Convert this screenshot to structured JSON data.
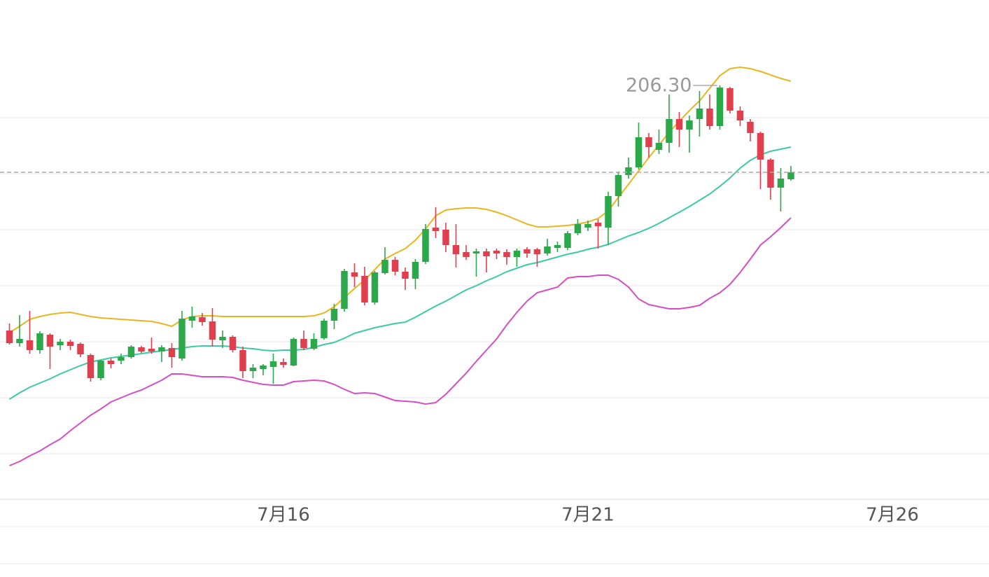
{
  "chart_data": {
    "type": "candlestick",
    "open": [
      188.8,
      187.9,
      188.1,
      187.4,
      188.5,
      187.75,
      188.0,
      187.85,
      187.05,
      185.4,
      186.65,
      186.65,
      186.9,
      187.6,
      187.5,
      187.3,
      187.55,
      186.8,
      189.5,
      189.75,
      189.45,
      188.1,
      188.35,
      187.4,
      185.9,
      186.05,
      186.2,
      186.55,
      186.3,
      188.2,
      187.5,
      188.25,
      189.5,
      190.35,
      192.95,
      192.7,
      190.8,
      192.9,
      193.85,
      193.0,
      192.5,
      193.7,
      196.15,
      196.0,
      194.9,
      194.4,
      194.3,
      194.45,
      194.5,
      194.4,
      194.05,
      194.6,
      194.6,
      194.3,
      194.7,
      194.7,
      195.75,
      196.15,
      196.5,
      196.15,
      198.4,
      199.9,
      200.45,
      202.6,
      201.7,
      202.2,
      203.9,
      203.15,
      203.9,
      204.65,
      203.4,
      206.1,
      204.5,
      203.7,
      202.9,
      201.0,
      199.0,
      199.6
    ],
    "close": [
      187.9,
      188.2,
      187.4,
      188.6,
      187.65,
      188.0,
      187.7,
      187.1,
      185.4,
      186.65,
      186.4,
      186.9,
      187.65,
      187.3,
      187.3,
      187.6,
      186.9,
      189.65,
      189.8,
      189.4,
      188.15,
      188.35,
      187.4,
      185.9,
      186.15,
      186.3,
      186.6,
      186.35,
      188.2,
      187.55,
      188.2,
      189.5,
      190.35,
      193.05,
      192.65,
      190.8,
      192.95,
      193.85,
      193.0,
      192.5,
      193.7,
      196.05,
      195.9,
      194.9,
      194.25,
      194.05,
      194.45,
      194.1,
      194.3,
      194.05,
      194.5,
      194.3,
      194.25,
      194.8,
      194.9,
      195.75,
      196.4,
      196.4,
      196.25,
      198.4,
      199.9,
      200.45,
      202.6,
      201.9,
      202.2,
      203.9,
      203.15,
      203.8,
      204.65,
      203.4,
      206.15,
      204.5,
      203.8,
      202.9,
      201.0,
      199.0,
      199.65,
      200.1
    ],
    "high": [
      189.3,
      189.9,
      190.2,
      188.75,
      188.6,
      188.2,
      188.15,
      187.95,
      187.15,
      186.7,
      186.8,
      187.15,
      187.75,
      187.7,
      188.3,
      187.75,
      187.9,
      190.2,
      190.5,
      190.05,
      190.4,
      188.8,
      188.45,
      187.65,
      186.4,
      186.4,
      187.15,
      186.8,
      188.3,
      188.8,
      188.6,
      189.65,
      190.7,
      193.2,
      193.6,
      193.35,
      193.05,
      194.75,
      194.05,
      193.3,
      193.9,
      196.4,
      197.6,
      196.5,
      196.4,
      194.9,
      194.65,
      194.65,
      194.65,
      194.6,
      194.65,
      194.75,
      194.7,
      195.35,
      195.15,
      195.9,
      196.75,
      196.65,
      196.75,
      198.7,
      200.15,
      201.15,
      203.65,
      202.9,
      203.15,
      205.65,
      204.4,
      204.15,
      205.9,
      205.65,
      206.3,
      206.2,
      204.8,
      203.9,
      203.0,
      201.1,
      200.4,
      200.55
    ],
    "low": [
      187.8,
      187.65,
      187.15,
      187.15,
      186.05,
      187.4,
      187.4,
      186.9,
      185.15,
      185.25,
      186.1,
      186.4,
      186.8,
      187.2,
      187.15,
      186.55,
      186.15,
      186.65,
      189.0,
      189.15,
      187.65,
      187.55,
      187.25,
      185.4,
      185.4,
      185.6,
      185.0,
      186.15,
      186.25,
      187.4,
      187.4,
      188.15,
      188.9,
      190.15,
      191.9,
      190.6,
      190.65,
      192.8,
      192.75,
      191.7,
      191.75,
      193.55,
      195.4,
      194.4,
      193.3,
      193.85,
      192.65,
      192.95,
      193.9,
      193.5,
      193.35,
      194.0,
      193.35,
      194.15,
      194.4,
      194.55,
      195.6,
      195.9,
      194.65,
      194.9,
      197.65,
      199.65,
      200.3,
      201.15,
      201.4,
      201.5,
      201.9,
      201.5,
      202.65,
      203.15,
      203.15,
      204.3,
      203.4,
      202.3,
      198.9,
      198.15,
      197.3,
      199.5
    ],
    "up_color": "#2aa84a",
    "down_color": "#e0404e",
    "bands": [
      {
        "color": "#e8b71f",
        "values": [
          188.65,
          189.1,
          189.6,
          189.8,
          189.95,
          190.05,
          190.1,
          189.95,
          189.8,
          189.7,
          189.65,
          189.6,
          189.55,
          189.5,
          189.45,
          189.3,
          189.1,
          189.55,
          189.8,
          189.85,
          189.85,
          189.8,
          189.8,
          189.8,
          189.8,
          189.8,
          189.8,
          189.8,
          189.8,
          189.8,
          189.85,
          190.05,
          190.5,
          191.15,
          191.8,
          192.4,
          193.15,
          193.9,
          194.3,
          194.65,
          195.25,
          196.05,
          197.0,
          197.4,
          197.5,
          197.55,
          197.55,
          197.45,
          197.25,
          197.0,
          196.7,
          196.4,
          196.2,
          196.2,
          196.25,
          196.3,
          196.4,
          196.55,
          196.8,
          197.35,
          198.3,
          199.25,
          200.2,
          201.15,
          202.05,
          202.95,
          203.75,
          204.5,
          205.2,
          206.1,
          207.0,
          207.5,
          207.6,
          207.5,
          207.3,
          207.05,
          206.8,
          206.6
        ]
      },
      {
        "color": "#3cc9a5",
        "values": [
          183.9,
          184.35,
          184.75,
          185.05,
          185.35,
          185.7,
          186.0,
          186.3,
          186.55,
          186.7,
          186.85,
          186.95,
          187.05,
          187.15,
          187.25,
          187.35,
          187.45,
          187.55,
          187.65,
          187.7,
          187.7,
          187.7,
          187.65,
          187.55,
          187.5,
          187.4,
          187.35,
          187.4,
          187.4,
          187.45,
          187.6,
          187.8,
          187.95,
          188.25,
          188.6,
          188.8,
          189.0,
          189.15,
          189.3,
          189.4,
          189.75,
          190.15,
          190.55,
          190.9,
          191.3,
          191.7,
          192.0,
          192.35,
          192.65,
          193.0,
          193.25,
          193.5,
          193.65,
          193.85,
          194.05,
          194.25,
          194.4,
          194.6,
          194.75,
          194.95,
          195.25,
          195.55,
          195.8,
          196.1,
          196.45,
          196.85,
          197.25,
          197.65,
          198.1,
          198.55,
          199.1,
          199.7,
          200.4,
          200.95,
          201.35,
          201.6,
          201.75,
          201.9
        ]
      },
      {
        "color": "#d54ec2",
        "values": [
          179.15,
          179.45,
          179.85,
          180.2,
          180.65,
          181.05,
          181.65,
          182.2,
          182.75,
          183.2,
          183.7,
          184.0,
          184.3,
          184.55,
          184.9,
          185.25,
          185.7,
          185.7,
          185.6,
          185.5,
          185.5,
          185.5,
          185.45,
          185.25,
          185.1,
          184.95,
          184.9,
          184.9,
          185.15,
          185.2,
          185.25,
          185.2,
          184.95,
          184.6,
          184.3,
          184.35,
          184.3,
          184.05,
          183.8,
          183.75,
          183.7,
          183.55,
          183.65,
          184.25,
          185.0,
          185.75,
          186.6,
          187.4,
          188.2,
          189.2,
          190.1,
          190.9,
          191.5,
          191.7,
          191.9,
          192.55,
          192.65,
          192.65,
          192.75,
          192.75,
          192.45,
          191.9,
          191.05,
          190.65,
          190.5,
          190.35,
          190.35,
          190.45,
          190.6,
          191.1,
          191.5,
          192.1,
          192.95,
          193.9,
          194.9,
          195.5,
          196.15,
          196.85
        ]
      }
    ],
    "annotation": {
      "index": 70,
      "label": "206.30"
    },
    "last_price_line": true,
    "xlim": [
      -0.93,
      96.52
    ],
    "xticks": [
      {
        "value": 27,
        "label": "7月16"
      },
      {
        "value": 57,
        "label": "7月21"
      },
      {
        "value": 87,
        "label": "7月26"
      }
    ],
    "ylim": [
      176.75,
      212.4
    ],
    "yticks": [
      180,
      184,
      188,
      192,
      196,
      200,
      204
    ],
    "grid": true
  }
}
